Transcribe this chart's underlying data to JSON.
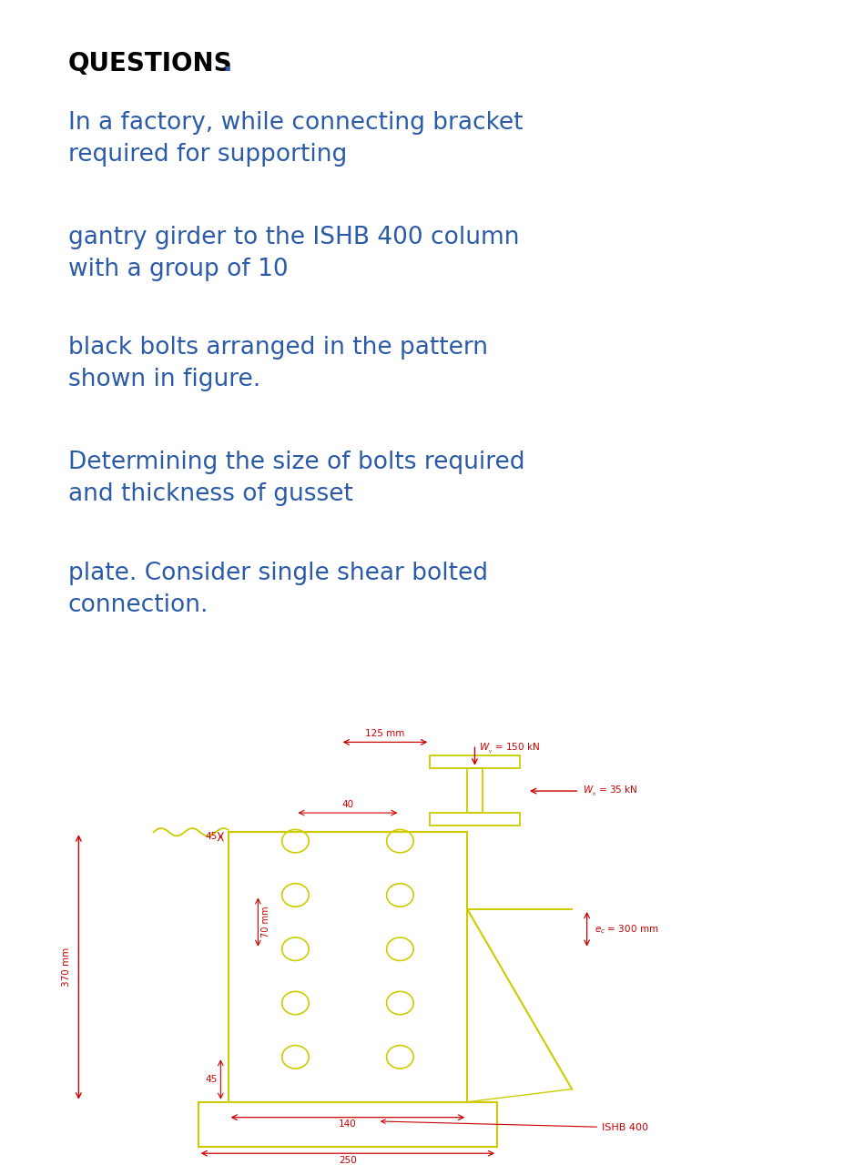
{
  "title_black": "QUESTIONS",
  "title_dot": ".",
  "paragraphs": [
    "In a factory, while connecting bracket\nrequired for supporting",
    "gantry girder to the ISHB 400 column\nwith a group of 10",
    "black bolts arranged in the pattern\nshown in figure.",
    "Determining the size of bolts required\nand thickness of gusset",
    "plate. Consider single shear bolted\nconnection."
  ],
  "text_color_blue": "#2B5BA8",
  "text_color_black": "#000000",
  "bg_color": "#00EFEF",
  "diagram_color": "#CCCC00",
  "dim_color": "#CC0000",
  "fig_bg": "#FFFFFF",
  "font_size_title": 20,
  "font_size_body": 19,
  "font_size_diagram": 7.5
}
